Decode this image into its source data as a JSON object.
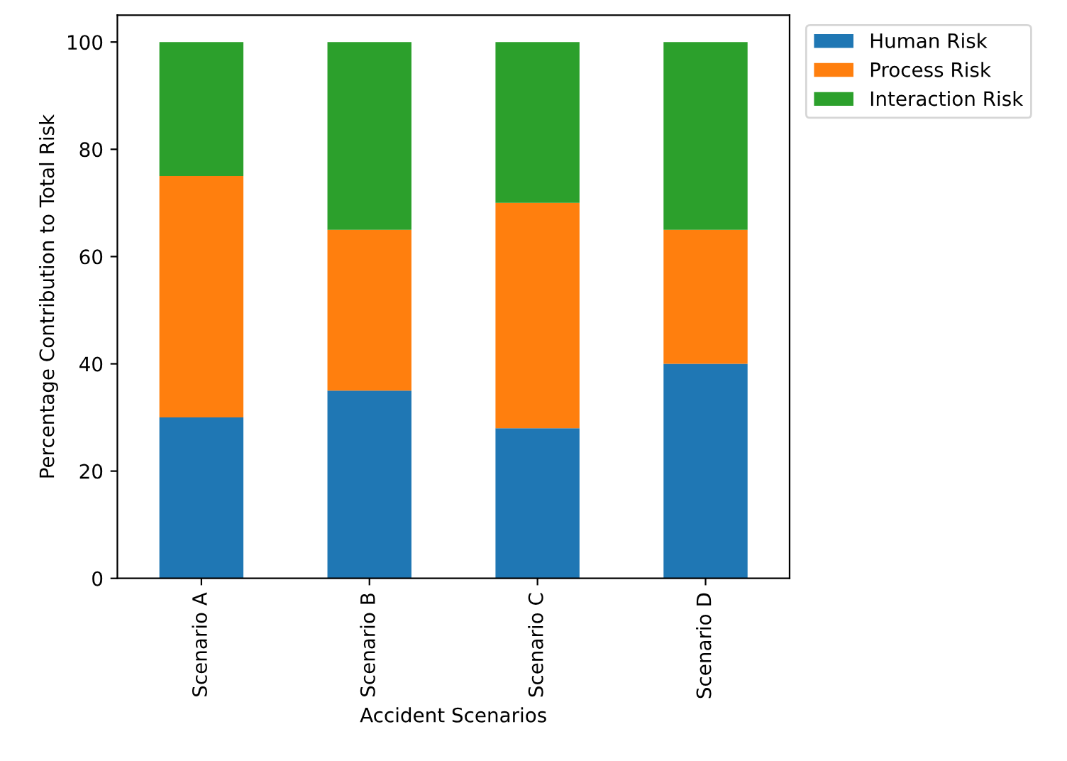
{
  "chart_data": {
    "type": "bar",
    "stacked": true,
    "xlabel": "Accident Scenarios",
    "ylabel": "Percentage Contribution to Total Risk",
    "categories": [
      "Scenario A",
      "Scenario B",
      "Scenario C",
      "Scenario D"
    ],
    "series": [
      {
        "name": "Human Risk",
        "color": "#1f77b4",
        "values": [
          30,
          35,
          28,
          40
        ]
      },
      {
        "name": "Process Risk",
        "color": "#ff7f0e",
        "values": [
          45,
          30,
          42,
          25
        ]
      },
      {
        "name": "Interaction Risk",
        "color": "#2ca02c",
        "values": [
          25,
          35,
          30,
          35
        ]
      }
    ],
    "ylim": [
      0,
      105
    ],
    "yticks": [
      0,
      20,
      40,
      60,
      80,
      100
    ],
    "grid": false,
    "legend": "top right"
  }
}
